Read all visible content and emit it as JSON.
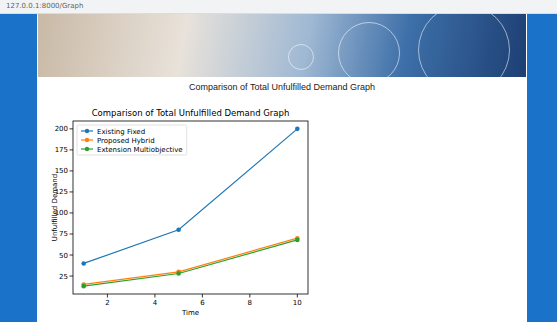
{
  "browser": {
    "url": "127.0.0.1:8000/Graph"
  },
  "page": {
    "heading": "Comparison of Total Unfulfilled Demand Graph"
  },
  "chart_data": {
    "type": "line",
    "title": "Comparison of Total Unfulfilled Demand Graph",
    "x_label": "Time",
    "y_label": "Unfulfilled Demand",
    "x": [
      1,
      5,
      10
    ],
    "series": [
      {
        "name": "Existing Fixed",
        "color": "#1f77b4",
        "values": [
          40,
          80,
          200
        ]
      },
      {
        "name": "Proposed Hybrid",
        "color": "#ff7f0e",
        "values": [
          15,
          30,
          70
        ]
      },
      {
        "name": "Extension Multiobjective",
        "color": "#2ca02c",
        "values": [
          13,
          28,
          68
        ]
      }
    ],
    "xlim": [
      0.55,
      10.45
    ],
    "ylim": [
      3.65,
      209.35
    ],
    "xticks": [
      2,
      4,
      6,
      8,
      10
    ],
    "yticks": [
      25,
      50,
      75,
      100,
      125,
      150,
      175,
      200
    ],
    "legend": "upper left",
    "grid": false,
    "marker": "circle"
  }
}
